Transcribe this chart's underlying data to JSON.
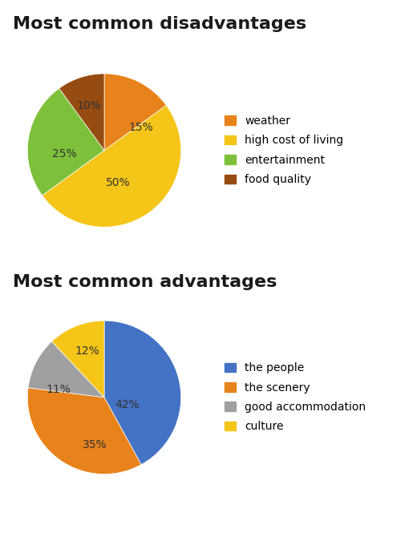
{
  "disadvantages": {
    "title": "Most common disadvantages",
    "labels": [
      "weather",
      "high cost of living",
      "entertainment",
      "food quality"
    ],
    "values": [
      15,
      50,
      25,
      10
    ],
    "colors": [
      "#E8821A",
      "#F5C518",
      "#7DC13A",
      "#964B10"
    ],
    "pct_labels": [
      "15%",
      "50%",
      "25%",
      "10%"
    ],
    "startangle": 90
  },
  "advantages": {
    "title": "Most common advantages",
    "labels": [
      "the people",
      "the scenery",
      "good accommodation",
      "culture"
    ],
    "values": [
      42,
      35,
      11,
      12
    ],
    "colors": [
      "#4472C4",
      "#E8821A",
      "#A0A0A0",
      "#F5C518"
    ],
    "pct_labels": [
      "42%",
      "35%",
      "11%",
      "12%"
    ],
    "startangle": 90
  },
  "background_color": "#FFFFFF",
  "title_fontsize": 16,
  "label_fontsize": 10,
  "legend_fontsize": 10
}
